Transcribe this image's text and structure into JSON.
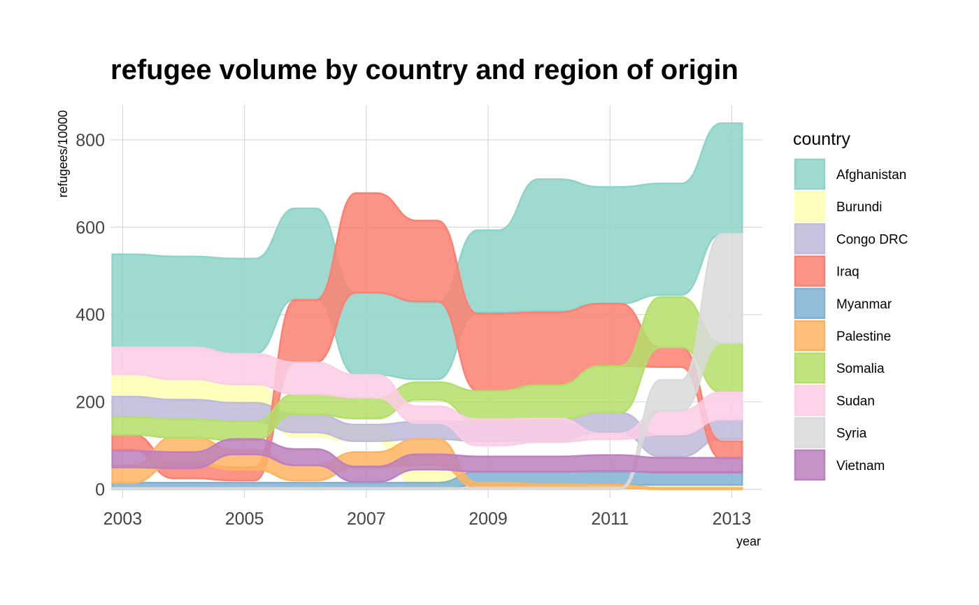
{
  "chart_data": {
    "type": "area",
    "subtype": "bump-stream",
    "title": "refugee volume by country and region of origin",
    "xlabel": "year",
    "ylabel": "refugees/10000",
    "xlim": [
      2002.8,
      2013.5
    ],
    "ylim": [
      -20,
      880
    ],
    "x_ticks": [
      2003,
      2005,
      2007,
      2009,
      2011,
      2013
    ],
    "y_ticks": [
      0,
      200,
      400,
      600,
      800
    ],
    "grid": true,
    "legend_title": "country",
    "legend_position": "right",
    "x": [
      2003,
      2004,
      2005,
      2006,
      2007,
      2008,
      2009,
      2010,
      2011,
      2012,
      2013
    ],
    "series": [
      {
        "name": "Afghanistan",
        "color": "#8dd3c7",
        "bottom": [
          325,
          325,
          310,
          435,
          262,
          252,
          405,
          408,
          425,
          445,
          585
        ],
        "top": [
          538,
          533,
          528,
          643,
          450,
          428,
          593,
          710,
          692,
          700,
          838
        ]
      },
      {
        "name": "Burundi",
        "color": "#ffffb3",
        "bottom": [
          212,
          205,
          198,
          120,
          110,
          5,
          3,
          3,
          2,
          7,
          7
        ],
        "top": [
          263,
          252,
          240,
          172,
          148,
          50,
          16,
          14,
          10,
          13,
          13
        ]
      },
      {
        "name": "Congo DRC",
        "color": "#bebada",
        "bottom": [
          165,
          160,
          155,
          130,
          110,
          115,
          110,
          112,
          130,
          75,
          115
        ],
        "top": [
          212,
          205,
          198,
          172,
          148,
          155,
          155,
          160,
          175,
          122,
          160
        ]
      },
      {
        "name": "Iraq",
        "color": "#fb8072",
        "bottom": [
          90,
          25,
          20,
          290,
          450,
          430,
          225,
          238,
          282,
          280,
          70
        ],
        "top": [
          125,
          60,
          50,
          433,
          678,
          615,
          402,
          405,
          425,
          325,
          110
        ]
      },
      {
        "name": "Myanmar",
        "color": "#80b1d3",
        "bottom": [
          0,
          0,
          0,
          0,
          0,
          0,
          10,
          10,
          10,
          10,
          10
        ],
        "top": [
          15,
          15,
          15,
          15,
          15,
          15,
          40,
          40,
          40,
          40,
          40
        ]
      },
      {
        "name": "Palestine",
        "color": "#fdb462",
        "bottom": [
          15,
          58,
          45,
          20,
          50,
          55,
          3,
          3,
          2,
          0,
          0
        ],
        "top": [
          55,
          120,
          90,
          55,
          85,
          115,
          15,
          12,
          10,
          3,
          3
        ]
      },
      {
        "name": "Somalia",
        "color": "#b3de69",
        "bottom": [
          125,
          118,
          112,
          172,
          162,
          205,
          155,
          160,
          175,
          325,
          222
        ],
        "top": [
          165,
          160,
          155,
          218,
          210,
          245,
          225,
          238,
          282,
          440,
          335
        ]
      },
      {
        "name": "Sudan",
        "color": "#fccde5",
        "bottom": [
          263,
          252,
          240,
          218,
          210,
          152,
          100,
          108,
          115,
          125,
          160
        ],
        "top": [
          325,
          325,
          310,
          290,
          262,
          190,
          160,
          162,
          128,
          180,
          222
        ]
      },
      {
        "name": "Syria",
        "color": "#d9d9d9",
        "bottom": [
          0,
          0,
          0,
          0,
          0,
          0,
          0,
          0,
          0,
          180,
          335
        ],
        "top": [
          3,
          3,
          3,
          3,
          3,
          3,
          3,
          3,
          3,
          250,
          585
        ]
      },
      {
        "name": "Vietnam",
        "color": "#bc80bd",
        "bottom": [
          50,
          48,
          80,
          55,
          17,
          45,
          40,
          40,
          42,
          38,
          38
        ],
        "top": [
          88,
          85,
          115,
          92,
          52,
          80,
          75,
          75,
          78,
          72,
          72
        ]
      }
    ]
  }
}
